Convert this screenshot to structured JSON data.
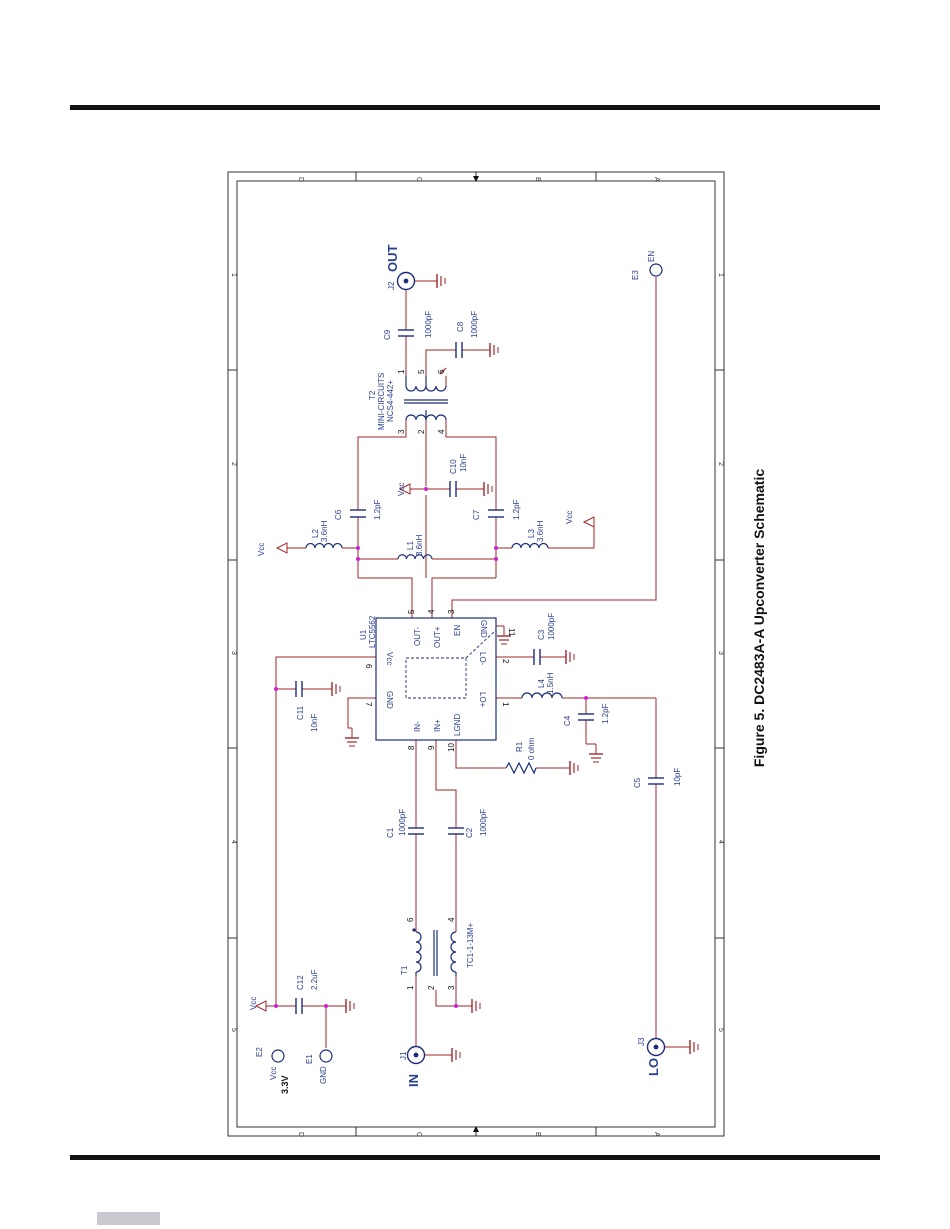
{
  "caption": "Figure 5. DC2483A-A Upconverter Schematic",
  "frame": {
    "zone_letters": [
      "D",
      "C",
      "B",
      "A"
    ],
    "zone_numbers": [
      "1",
      "2",
      "3",
      "4",
      "5"
    ]
  },
  "ports": {
    "out": "OUT",
    "out_ref": "J2",
    "in": "IN",
    "in_ref": "J1",
    "lo": "LO",
    "lo_ref": "J3",
    "en": "EN",
    "en_ref": "E3",
    "vcc_label": "Vcc",
    "vcc_value": "3.3V",
    "vcc_ref": "E2",
    "gnd_label": "GND",
    "gnd_ref": "E1"
  },
  "ic": {
    "ref": "U1",
    "part": "LTC5562",
    "pins": {
      "out_minus": "OUT-",
      "out_plus": "OUT+",
      "en": "EN",
      "gnd": "GND",
      "vcc": "Vcc",
      "lo_minus": "LO-",
      "lo_plus": "LO+",
      "gnd_left": "GND",
      "in_minus": "IN-",
      "in_plus": "IN+",
      "lgnd": "LGND"
    },
    "pin_numbers": {
      "p5": "5",
      "p4": "4",
      "p3": "3",
      "p11": "11",
      "p6": "6",
      "p2": "2",
      "p1": "1",
      "p7": "7",
      "p8": "8",
      "p9": "9",
      "p10": "10"
    }
  },
  "t2": {
    "ref": "T2",
    "mfr": "MINI-CIRCUITS",
    "part": "NCS4-442+",
    "pins": [
      "3",
      "2",
      "4",
      "1",
      "5",
      "6"
    ]
  },
  "t1": {
    "ref": "T1",
    "part": "TC1-1-13M+",
    "pins": [
      "1",
      "2",
      "3",
      "6",
      "4"
    ]
  },
  "components": {
    "c9": {
      "ref": "C9",
      "value": "1000pF"
    },
    "c8": {
      "ref": "C8",
      "value": "1000pF"
    },
    "c10": {
      "ref": "C10",
      "value": "10nF"
    },
    "c6": {
      "ref": "C6",
      "value": "1.2pF"
    },
    "c7": {
      "ref": "C7",
      "value": "1.2pF"
    },
    "l1": {
      "ref": "L1",
      "value": "3.6nH"
    },
    "l2": {
      "ref": "L2",
      "value": "3.6nH"
    },
    "l3": {
      "ref": "L3",
      "value": "3.6nH"
    },
    "c3": {
      "ref": "C3",
      "value": "1000pF"
    },
    "l4": {
      "ref": "L4",
      "value": "1.5nH"
    },
    "c4": {
      "ref": "C4",
      "value": "1.2pF"
    },
    "c5": {
      "ref": "C5",
      "value": "10pF"
    },
    "r1": {
      "ref": "R1",
      "value": "0 ohm"
    },
    "c11": {
      "ref": "C11",
      "value": "10nF"
    },
    "c1": {
      "ref": "C1",
      "value": "1000pF"
    },
    "c2": {
      "ref": "C2",
      "value": "1000pF"
    },
    "c12": {
      "ref": "C12",
      "value": "2.2uF"
    }
  },
  "vcc_net": "Vcc",
  "colors": {
    "wire": "#a3262a",
    "label": "#2a3f8f",
    "junction": "#cc22cc",
    "frame": "#333333"
  }
}
